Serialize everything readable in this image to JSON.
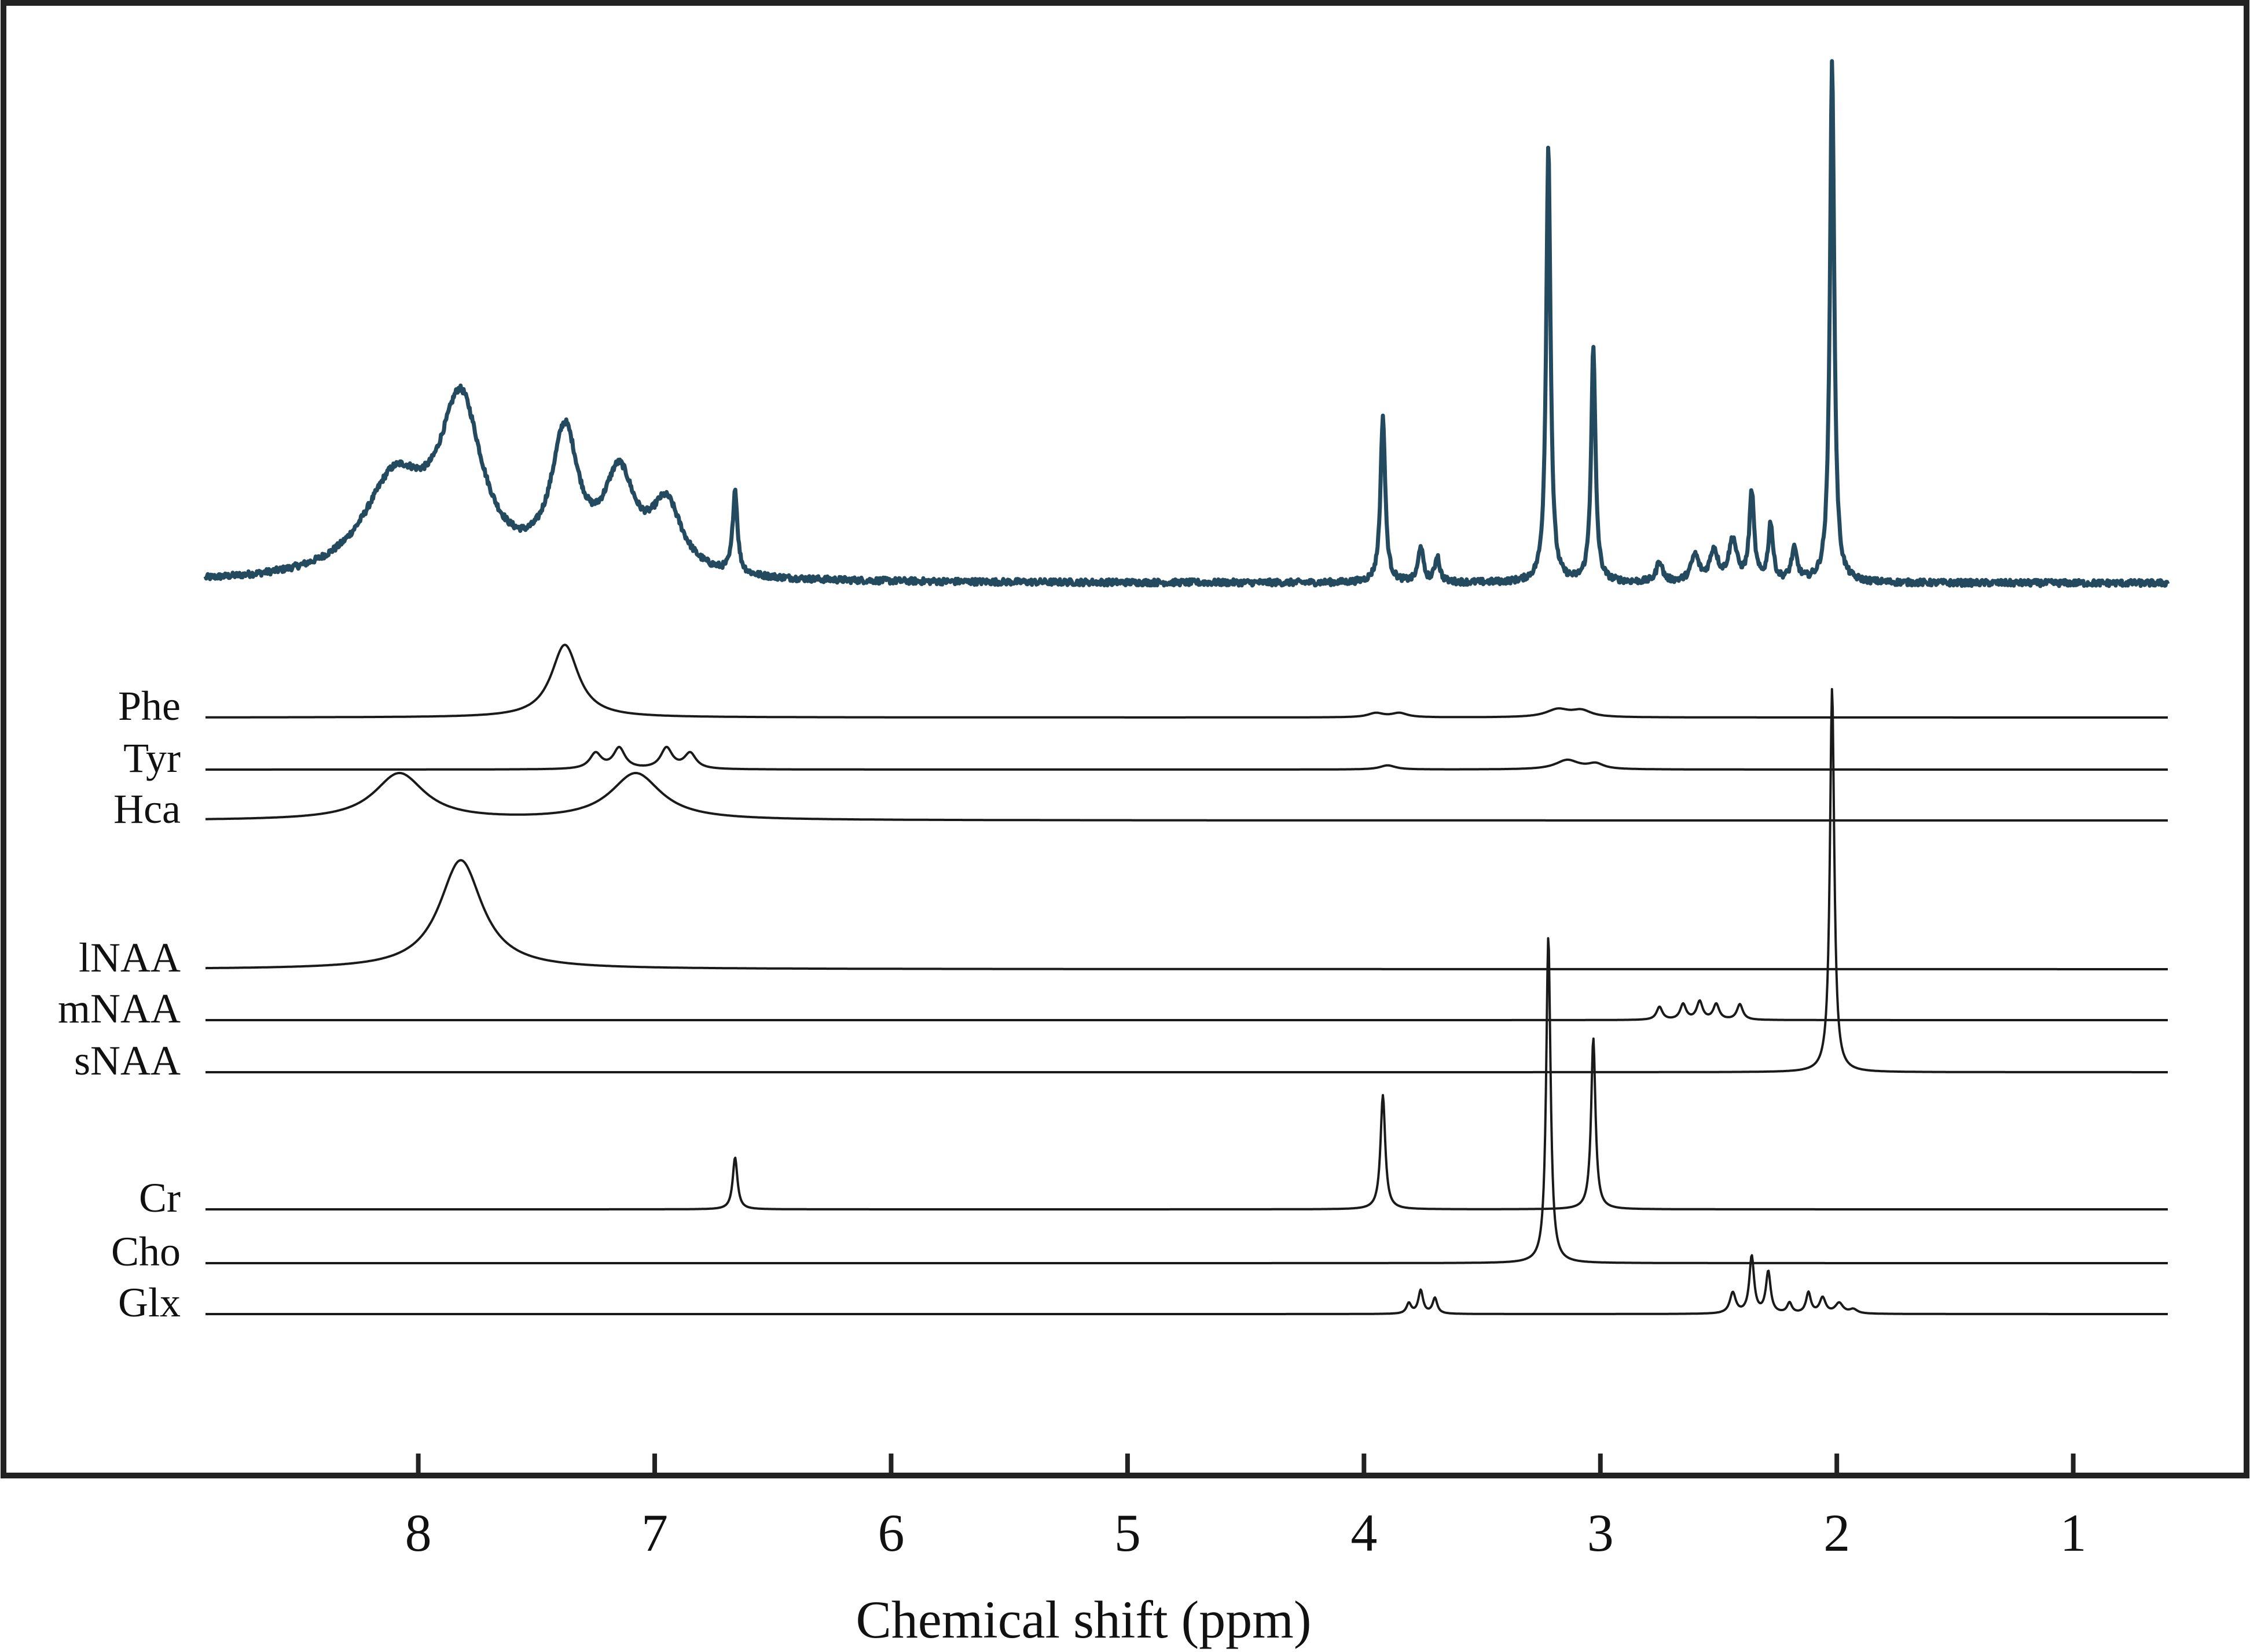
{
  "chart_data": {
    "type": "line",
    "title": "",
    "xlabel": "Chemical shift (ppm)",
    "ylabel": "",
    "x_reversed": true,
    "xlim": [
      8.9,
      0.6
    ],
    "xticks": [
      8,
      7,
      6,
      5,
      4,
      3,
      2,
      1
    ],
    "grid": false,
    "legend": "none",
    "colors": {
      "measured": "#234a5e",
      "component": "#1a1a1a",
      "frame": "#222222"
    },
    "measured_spectrum": {
      "noise": 0.006,
      "peaks": [
        {
          "ppm": 8.1,
          "height": 0.18,
          "width": 0.16
        },
        {
          "ppm": 7.82,
          "height": 0.32,
          "width": 0.11
        },
        {
          "ppm": 7.38,
          "height": 0.26,
          "width": 0.07
        },
        {
          "ppm": 7.15,
          "height": 0.18,
          "width": 0.08
        },
        {
          "ppm": 6.95,
          "height": 0.13,
          "width": 0.08
        },
        {
          "ppm": 6.66,
          "height": 0.16,
          "width": 0.012
        },
        {
          "ppm": 3.92,
          "height": 0.32,
          "width": 0.012
        },
        {
          "ppm": 3.76,
          "height": 0.07,
          "width": 0.012
        },
        {
          "ppm": 3.69,
          "height": 0.05,
          "width": 0.012
        },
        {
          "ppm": 3.22,
          "height": 0.84,
          "width": 0.011
        },
        {
          "ppm": 3.03,
          "height": 0.45,
          "width": 0.011
        },
        {
          "ppm": 2.75,
          "height": 0.04,
          "width": 0.015
        },
        {
          "ppm": 2.6,
          "height": 0.05,
          "width": 0.02
        },
        {
          "ppm": 2.52,
          "height": 0.06,
          "width": 0.02
        },
        {
          "ppm": 2.44,
          "height": 0.08,
          "width": 0.02
        },
        {
          "ppm": 2.36,
          "height": 0.17,
          "width": 0.012
        },
        {
          "ppm": 2.28,
          "height": 0.11,
          "width": 0.012
        },
        {
          "ppm": 2.18,
          "height": 0.06,
          "width": 0.015
        },
        {
          "ppm": 2.02,
          "height": 1.0,
          "width": 0.011
        }
      ]
    },
    "series": [
      {
        "name": "Phe",
        "peaks": [
          {
            "ppm": 7.38,
            "height": 0.14,
            "width": 0.07
          },
          {
            "ppm": 3.95,
            "height": 0.008,
            "width": 0.04
          },
          {
            "ppm": 3.85,
            "height": 0.008,
            "width": 0.04
          },
          {
            "ppm": 3.18,
            "height": 0.015,
            "width": 0.06
          },
          {
            "ppm": 3.08,
            "height": 0.012,
            "width": 0.05
          }
        ]
      },
      {
        "name": "Tyr",
        "peaks": [
          {
            "ppm": 7.25,
            "height": 0.03,
            "width": 0.03
          },
          {
            "ppm": 7.15,
            "height": 0.04,
            "width": 0.03
          },
          {
            "ppm": 6.95,
            "height": 0.04,
            "width": 0.03
          },
          {
            "ppm": 6.85,
            "height": 0.03,
            "width": 0.03
          },
          {
            "ppm": 3.9,
            "height": 0.008,
            "width": 0.04
          },
          {
            "ppm": 3.14,
            "height": 0.018,
            "width": 0.06
          },
          {
            "ppm": 3.02,
            "height": 0.01,
            "width": 0.04
          }
        ]
      },
      {
        "name": "Hca",
        "peaks": [
          {
            "ppm": 8.08,
            "height": 0.09,
            "width": 0.13
          },
          {
            "ppm": 7.08,
            "height": 0.09,
            "width": 0.13
          }
        ]
      },
      {
        "name": "lNAA",
        "peaks": [
          {
            "ppm": 7.82,
            "height": 0.21,
            "width": 0.11
          }
        ]
      },
      {
        "name": "mNAA",
        "peaks": [
          {
            "ppm": 2.75,
            "height": 0.025,
            "width": 0.015
          },
          {
            "ppm": 2.65,
            "height": 0.03,
            "width": 0.015
          },
          {
            "ppm": 2.58,
            "height": 0.035,
            "width": 0.015
          },
          {
            "ppm": 2.51,
            "height": 0.03,
            "width": 0.015
          },
          {
            "ppm": 2.41,
            "height": 0.03,
            "width": 0.015
          }
        ]
      },
      {
        "name": "sNAA",
        "peaks": [
          {
            "ppm": 2.02,
            "height": 0.74,
            "width": 0.011
          }
        ]
      },
      {
        "name": "Cr",
        "peaks": [
          {
            "ppm": 6.66,
            "height": 0.1,
            "width": 0.012
          },
          {
            "ppm": 3.92,
            "height": 0.22,
            "width": 0.012
          },
          {
            "ppm": 3.03,
            "height": 0.33,
            "width": 0.011
          }
        ]
      },
      {
        "name": "Cho",
        "peaks": [
          {
            "ppm": 3.22,
            "height": 0.63,
            "width": 0.011
          }
        ]
      },
      {
        "name": "Glx",
        "peaks": [
          {
            "ppm": 3.81,
            "height": 0.02,
            "width": 0.012
          },
          {
            "ppm": 3.76,
            "height": 0.045,
            "width": 0.012
          },
          {
            "ppm": 3.7,
            "height": 0.03,
            "width": 0.012
          },
          {
            "ppm": 2.44,
            "height": 0.04,
            "width": 0.015
          },
          {
            "ppm": 2.36,
            "height": 0.11,
            "width": 0.012
          },
          {
            "ppm": 2.29,
            "height": 0.08,
            "width": 0.012
          },
          {
            "ppm": 2.2,
            "height": 0.02,
            "width": 0.012
          },
          {
            "ppm": 2.12,
            "height": 0.04,
            "width": 0.012
          },
          {
            "ppm": 2.06,
            "height": 0.03,
            "width": 0.015
          },
          {
            "ppm": 1.99,
            "height": 0.02,
            "width": 0.02
          },
          {
            "ppm": 1.93,
            "height": 0.008,
            "width": 0.02
          }
        ]
      }
    ]
  }
}
